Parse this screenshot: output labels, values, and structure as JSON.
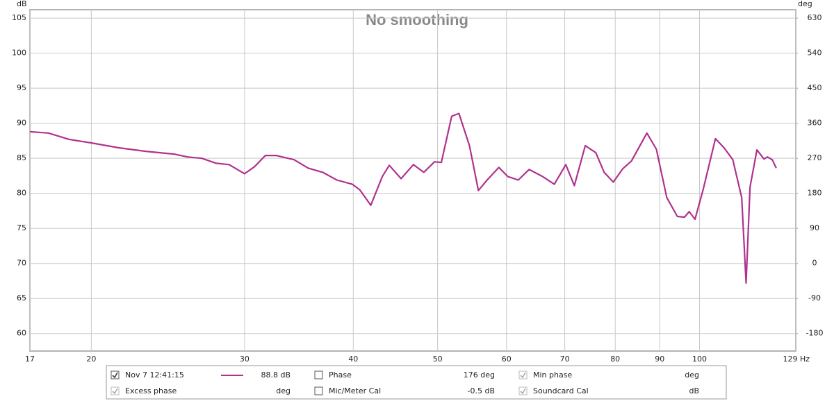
{
  "chart_data": {
    "type": "line",
    "title": "No smoothing",
    "x_label": "Hz",
    "y_label": "dB",
    "y2_label": "deg",
    "log_x": true,
    "grid": true,
    "xlim": [
      17,
      129
    ],
    "xticks": [
      17,
      20,
      30,
      40,
      50,
      60,
      70,
      80,
      90,
      100,
      129
    ],
    "ylim": [
      57.5,
      106.2
    ],
    "yticks": [
      60,
      65,
      70,
      75,
      80,
      85,
      90,
      95,
      100,
      105
    ],
    "y2lim": [
      -225,
      651.6
    ],
    "y2ticks": [
      -180,
      -90,
      0,
      90,
      180,
      270,
      360,
      450,
      540,
      630
    ],
    "x": [
      17,
      17.86,
      18.86,
      20,
      21.5,
      23.1,
      24.9,
      25.8,
      26.8,
      27.8,
      28.8,
      30,
      30.8,
      31.7,
      32.6,
      34.2,
      35.5,
      36.9,
      38.3,
      39.9,
      40.7,
      41.9,
      43.2,
      44,
      45.4,
      46.9,
      48.2,
      49.6,
      50.5,
      51.9,
      52.9,
      54.4,
      55.7,
      57,
      58.8,
      60.2,
      61.9,
      63.7,
      66,
      68.1,
      70.2,
      71.8,
      73.9,
      76,
      77.7,
      79.6,
      81.6,
      83.5,
      87,
      89.2,
      91.7,
      94.3,
      96.1,
      97.3,
      98.8,
      100.9,
      104.3,
      106.7,
      109.2,
      111.8,
      113.1,
      114.3,
      116.4,
      118.6,
      119.7,
      121.2,
      122.5
    ],
    "series": [
      {
        "name": "Nov 7 12:41:15",
        "color": "#b0318e",
        "axis": "y",
        "values": [
          88.8,
          88.6,
          87.7,
          87.2,
          86.5,
          86.0,
          85.6,
          85.2,
          85.0,
          84.3,
          84.1,
          82.8,
          83.8,
          85.4,
          85.4,
          84.8,
          83.6,
          83.0,
          81.9,
          81.3,
          80.5,
          78.3,
          82.4,
          84.0,
          82.1,
          84.1,
          83.0,
          84.5,
          84.4,
          91.0,
          91.4,
          86.8,
          80.4,
          81.9,
          83.7,
          82.4,
          81.9,
          83.4,
          82.4,
          81.3,
          84.1,
          81.1,
          86.8,
          85.8,
          83.0,
          81.6,
          83.5,
          84.6,
          88.6,
          86.3,
          79.4,
          76.7,
          76.6,
          77.4,
          76.3,
          80.4,
          87.8,
          86.5,
          84.8,
          79.4,
          67.2,
          80.9,
          86.2,
          84.9,
          85.2,
          84.8,
          83.6
        ]
      }
    ],
    "legend_panel": {
      "rows": [
        [
          {
            "label": "Nov 7 12:41:15",
            "value": "88.8 dB",
            "checked": true,
            "color": "#a0307f"
          },
          {
            "label": "Phase",
            "value": "176 deg",
            "checked": false,
            "color": "#d040b0"
          },
          {
            "label": "Min phase",
            "value": "deg",
            "checked": true,
            "color": "#aaaaaa"
          }
        ],
        [
          {
            "label": "Excess phase",
            "value": "deg",
            "checked": true,
            "color": "#aaaaaa"
          },
          {
            "label": "Mic/Meter Cal",
            "value": "-0.5 dB",
            "checked": false,
            "color": "#111111"
          },
          {
            "label": "Soundcard Cal",
            "value": "dB",
            "checked": true,
            "color": "#aaaaaa"
          }
        ]
      ]
    }
  }
}
